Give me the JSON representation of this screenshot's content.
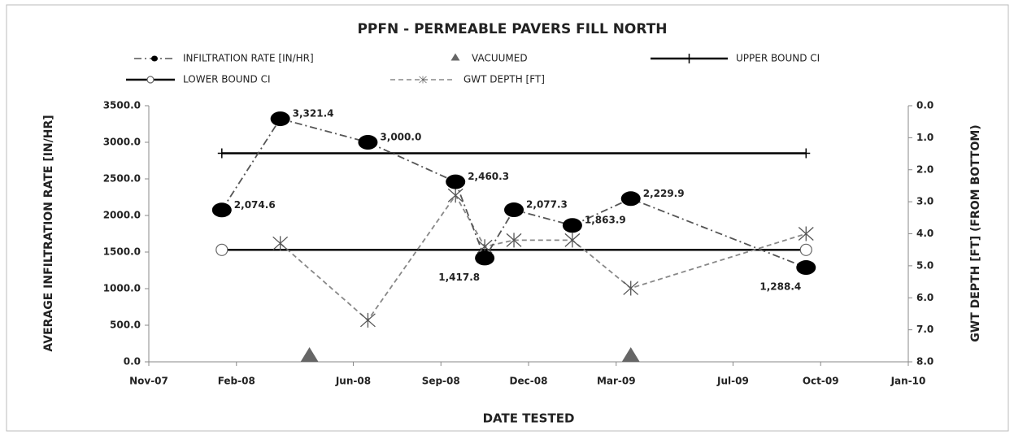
{
  "chart_data": {
    "type": "line",
    "title": "PPFN - PERMEABLE PAVERS FILL NORTH",
    "x_label": "DATE TESTED",
    "y_label": "AVERAGE INFILTRATION RATE [IN/HR]",
    "y2_label": "GWT DEPTH [FT]   (FROM BOTTOM)",
    "xlim": [
      "2007-11",
      "2010-01"
    ],
    "xticks": [
      {
        "value": "2007-11",
        "label": "Nov-07"
      },
      {
        "value": "2008-02",
        "label": "Feb-08"
      },
      {
        "value": "2008-06",
        "label": "Jun-08"
      },
      {
        "value": "2008-09",
        "label": "Sep-08"
      },
      {
        "value": "2008-12",
        "label": "Dec-08"
      },
      {
        "value": "2009-03",
        "label": "Mar-09"
      },
      {
        "value": "2009-07",
        "label": "Jul-09"
      },
      {
        "value": "2009-10",
        "label": "Oct-09"
      },
      {
        "value": "2010-01",
        "label": "Jan-10"
      }
    ],
    "ylim": [
      0,
      3500
    ],
    "yticks": [
      {
        "value": 0,
        "label": "0.0"
      },
      {
        "value": 500,
        "label": "500.0"
      },
      {
        "value": 1000,
        "label": "1000.0"
      },
      {
        "value": 1500,
        "label": "1500.0"
      },
      {
        "value": 2000,
        "label": "2000.0"
      },
      {
        "value": 2500,
        "label": "2500.0"
      },
      {
        "value": 3000,
        "label": "3000.0"
      },
      {
        "value": 3500,
        "label": "3500.0"
      }
    ],
    "y2lim": [
      0,
      8
    ],
    "y2_reversed": true,
    "y2ticks": [
      {
        "value": 0,
        "label": "0.0"
      },
      {
        "value": 1,
        "label": "1.0"
      },
      {
        "value": 2,
        "label": "2.0"
      },
      {
        "value": 3,
        "label": "3.0"
      },
      {
        "value": 4,
        "label": "4.0"
      },
      {
        "value": 5,
        "label": "5.0"
      },
      {
        "value": 6,
        "label": "6.0"
      },
      {
        "value": 7,
        "label": "7.0"
      },
      {
        "value": 8,
        "label": "8.0"
      }
    ],
    "x": [
      "2008-01",
      "2008-03",
      "2008-06",
      "2008-09",
      "2008-10",
      "2008-11",
      "2009-01",
      "2009-03",
      "2009-09"
    ],
    "series": [
      {
        "name": "INFILTRATION RATE [IN/HR]",
        "color": "#000000",
        "line_color": "#555555",
        "marker": "dot",
        "dash": "dash-dot",
        "values": [
          2074.6,
          3321.4,
          3000.0,
          2460.3,
          1417.8,
          2077.3,
          1863.9,
          2229.9,
          1288.4
        ],
        "value_labels": [
          "2,074.6",
          "3,321.4",
          "3,000.0",
          "2,460.3",
          "1,417.8",
          "2,077.3",
          "1,863.9",
          "2,229.9",
          "1,288.4"
        ]
      },
      {
        "name": "VACUUMED",
        "color": "#666666",
        "marker": "triangle",
        "dash": "none",
        "x": [
          "2008-04",
          "2009-03"
        ],
        "values": [
          0,
          0
        ]
      },
      {
        "name": "UPPER BOUND  CI",
        "color": "#000000",
        "marker": "plus",
        "dash": "solid",
        "x": [
          "2008-01",
          "2009-09"
        ],
        "values": [
          2850,
          2850
        ]
      },
      {
        "name": "LOWER BOUND  CI",
        "color": "#000000",
        "marker": "circle",
        "dash": "solid",
        "x": [
          "2008-01",
          "2009-09"
        ],
        "values": [
          1530,
          1530
        ]
      },
      {
        "name": "GWT DEPTH [FT]",
        "color": "#555555",
        "line_color": "#888888",
        "marker": "asterisk",
        "dash": "dash",
        "axis": "y2",
        "values": [
          null,
          4.3,
          6.7,
          2.8,
          4.4,
          4.2,
          4.2,
          5.7,
          4.0
        ]
      }
    ]
  }
}
